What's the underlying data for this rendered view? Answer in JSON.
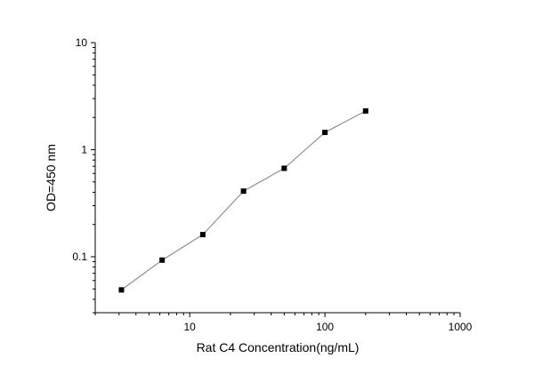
{
  "chart_data": {
    "type": "line",
    "title": "",
    "xlabel": "Rat C4 Concentration(ng/mL)",
    "ylabel": "OD=450 nm",
    "x_scale": "log",
    "y_scale": "log",
    "xlim": [
      2,
      1000
    ],
    "ylim": [
      0.03,
      10
    ],
    "x_ticks": [
      {
        "value": 10,
        "label": "10"
      },
      {
        "value": 100,
        "label": "100"
      },
      {
        "value": 1000,
        "label": "1000"
      }
    ],
    "y_ticks": [
      {
        "value": 0.1,
        "label": "0.1"
      },
      {
        "value": 1,
        "label": "1"
      },
      {
        "value": 10,
        "label": "10"
      }
    ],
    "grid": false,
    "legend": "none",
    "series": [
      {
        "x": [
          3.125,
          6.25,
          12.5,
          25,
          50,
          100,
          200
        ],
        "y": [
          0.049,
          0.093,
          0.161,
          0.41,
          0.67,
          1.45,
          2.3
        ],
        "marker": "square",
        "marker_color": "#000000",
        "line_color": "#808080"
      }
    ]
  }
}
